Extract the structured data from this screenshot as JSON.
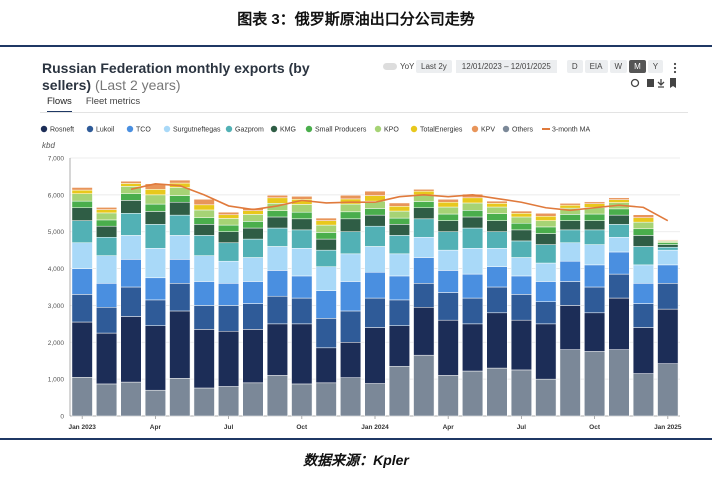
{
  "header": {
    "title": "图表 3：俄罗斯原油出口分公司走势"
  },
  "card": {
    "title": "Russian Federation monthly exports (by sellers)",
    "subtitle": "(Last 2 years)"
  },
  "controls": {
    "yoy": "YoY",
    "range": "Last 2y",
    "date_from": "12/01/2023",
    "date_sep": "–",
    "date_to": "12/01/2025",
    "buttons": [
      "D",
      "EIA",
      "W",
      "M",
      "Y"
    ],
    "active_button": "M"
  },
  "tabs": [
    "Flows",
    "Fleet metrics"
  ],
  "chart_data": {
    "type": "stacked-bar",
    "y_label": "kbd",
    "categories": [
      "Jan 2023",
      null,
      null,
      "Apr",
      null,
      null,
      "Jul",
      null,
      null,
      "Oct",
      null,
      null,
      "Jan 2024",
      null,
      null,
      "Apr",
      null,
      null,
      "Jul",
      null,
      null,
      "Oct",
      null,
      null,
      "Jan 2025"
    ],
    "ylim": [
      0,
      7000
    ],
    "yticks": [
      0,
      {
        "value": 1000,
        "label": "1,000"
      },
      {
        "value": 2000,
        "label": "2,000"
      },
      {
        "value": 3000,
        "label": "3,000"
      },
      {
        "value": 4000,
        "label": "4,000"
      },
      {
        "value": 5000,
        "label": "5,000"
      },
      {
        "value": 6000,
        "label": "6,000"
      },
      {
        "value": 7000,
        "label": "7,000"
      }
    ],
    "grid": true,
    "series": [
      {
        "name": "Rosneft",
        "color": "#1c2d57",
        "values": [
          1500,
          1380,
          1780,
          1750,
          1830,
          1590,
          1500,
          1450,
          1400,
          1630,
          950,
          960,
          1520,
          1100,
          1300,
          1500,
          1280,
          1500,
          1350,
          1500,
          1200,
          1050,
          1400,
          1250,
          1480
        ]
      },
      {
        "name": "Lukoil",
        "color": "#2f5b98",
        "values": [
          750,
          700,
          800,
          700,
          750,
          650,
          700,
          700,
          750,
          700,
          800,
          850,
          800,
          700,
          650,
          750,
          700,
          700,
          700,
          600,
          650,
          700,
          650,
          650,
          700
        ]
      },
      {
        "name": "TCO",
        "color": "#4a8fe0",
        "values": [
          700,
          650,
          750,
          600,
          650,
          650,
          600,
          600,
          700,
          600,
          750,
          800,
          700,
          650,
          700,
          600,
          650,
          550,
          500,
          550,
          550,
          600,
          600,
          550,
          500
        ]
      },
      {
        "name": "Surgutneftegas",
        "color": "#a9d9f8",
        "values": [
          700,
          750,
          650,
          800,
          650,
          700,
          600,
          650,
          650,
          750,
          650,
          750,
          700,
          600,
          550,
          550,
          700,
          500,
          500,
          500,
          500,
          550,
          400,
          500,
          400
        ]
      },
      {
        "name": "Gazprom",
        "color": "#52b1b5",
        "values": [
          600,
          500,
          600,
          650,
          550,
          550,
          500,
          500,
          500,
          500,
          450,
          600,
          550,
          500,
          500,
          500,
          550,
          450,
          450,
          500,
          350,
          400,
          350,
          500,
          80
        ]
      },
      {
        "name": "KMG",
        "color": "#2f5d45",
        "values": [
          350,
          300,
          350,
          350,
          350,
          300,
          300,
          300,
          300,
          300,
          300,
          350,
          300,
          300,
          300,
          300,
          300,
          300,
          300,
          300,
          250,
          250,
          250,
          300,
          70
        ]
      },
      {
        "name": "Small Producers",
        "color": "#4aae4c",
        "values": [
          180,
          170,
          180,
          200,
          180,
          180,
          180,
          180,
          170,
          180,
          180,
          190,
          180,
          170,
          170,
          180,
          180,
          190,
          180,
          180,
          170,
          180,
          170,
          180,
          50
        ]
      },
      {
        "name": "KPO",
        "color": "#a6d375",
        "values": [
          200,
          190,
          200,
          250,
          220,
          210,
          180,
          190,
          200,
          210,
          200,
          210,
          200,
          190,
          180,
          190,
          200,
          180,
          170,
          170,
          170,
          180,
          170,
          180,
          40
        ]
      },
      {
        "name": "TotalEnergies",
        "color": "#e8c81c",
        "values": [
          100,
          90,
          80,
          150,
          120,
          140,
          100,
          100,
          150,
          140,
          120,
          140,
          150,
          130,
          100,
          130,
          140,
          100,
          100,
          120,
          80,
          100,
          80,
          120,
          20
        ]
      },
      {
        "name": "KPV",
        "color": "#e8955a",
        "values": [
          70,
          60,
          60,
          150,
          80,
          150,
          70,
          70,
          70,
          80,
          70,
          100,
          120,
          90,
          50,
          80,
          100,
          60,
          60,
          80,
          50,
          50,
          50,
          80,
          20
        ]
      },
      {
        "name": "Others",
        "color": "#7b8898",
        "values": [
          1050,
          870,
          920,
          700,
          1020,
          760,
          800,
          900,
          1100,
          870,
          900,
          1040,
          880,
          1350,
          1650,
          1100,
          1220,
          1300,
          1250,
          1000,
          1800,
          1750,
          1800,
          1150,
          1420
        ]
      },
      {
        "name": "3-month MA",
        "color": "#e07a3c",
        "type": "line",
        "values": [
          null,
          null,
          6150,
          6300,
          6250,
          6000,
          5700,
          5600,
          5700,
          5850,
          5780,
          5800,
          5800,
          5950,
          6000,
          5950,
          6000,
          5900,
          5800,
          5650,
          5580,
          5650,
          5720,
          5660,
          5300
        ]
      }
    ]
  },
  "source": "数据来源：Kpler"
}
